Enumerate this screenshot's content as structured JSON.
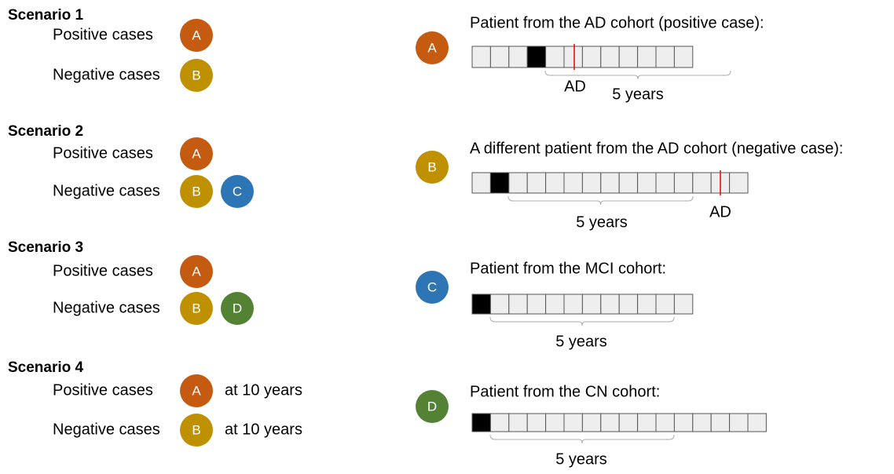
{
  "scenarios": [
    {
      "title": "Scenario 1",
      "rows": [
        {
          "label": "Positive cases",
          "cases": [
            "A"
          ]
        },
        {
          "label": "Negative cases",
          "cases": [
            "B"
          ]
        }
      ]
    },
    {
      "title": "Scenario 2",
      "rows": [
        {
          "label": "Positive cases",
          "cases": [
            "A"
          ]
        },
        {
          "label": "Negative cases",
          "cases": [
            "B",
            "C"
          ]
        }
      ]
    },
    {
      "title": "Scenario 3",
      "rows": [
        {
          "label": "Positive cases",
          "cases": [
            "A"
          ]
        },
        {
          "label": "Negative cases",
          "cases": [
            "B",
            "D"
          ]
        }
      ]
    },
    {
      "title": "Scenario 4",
      "rows": [
        {
          "label": "Positive cases",
          "cases": [
            "A"
          ],
          "note": "at 10 years"
        },
        {
          "label": "Negative cases",
          "cases": [
            "B"
          ],
          "note": "at 10 years"
        }
      ]
    }
  ],
  "patients": [
    {
      "id": "A",
      "text": "Patient from the AD cohort (positive case):",
      "window_label": "5 years",
      "event_label": "AD"
    },
    {
      "id": "B",
      "text": "A different patient from the AD cohort (negative case):",
      "window_label": "5 years",
      "event_label": "AD"
    },
    {
      "id": "C",
      "text": "Patient from the MCI cohort:",
      "window_label": "5 years"
    },
    {
      "id": "D",
      "text": "Patient from the CN cohort:",
      "window_label": "5 years"
    }
  ]
}
